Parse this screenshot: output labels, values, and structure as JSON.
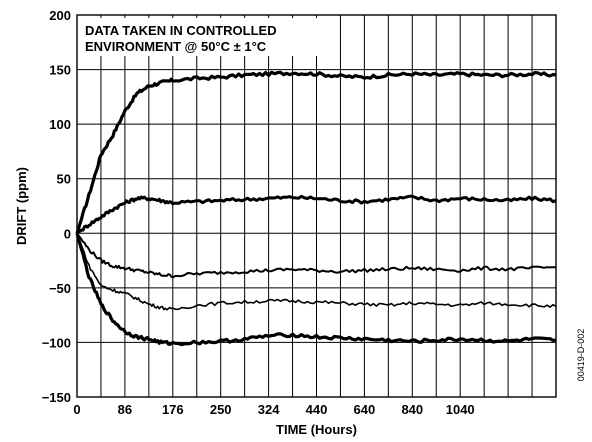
{
  "chart_data": {
    "type": "line",
    "xlabel": "TIME (Hours)",
    "ylabel": "DRIFT (ppm)",
    "annotation": [
      "DATA TAKEN IN CONTROLLED",
      "ENVIRONMENT @ 50°C ± 1°C"
    ],
    "figure_code": "00419-D-002",
    "x_tick_labels": [
      "0",
      "86",
      "176",
      "250",
      "324",
      "440",
      "640",
      "840",
      "1040"
    ],
    "x_tick_labels_note": "tick labels appear every other gridline; 20 equal divisions",
    "x_divisions": 20,
    "xlim": [
      0,
      20
    ],
    "ylim": [
      -150,
      200
    ],
    "y_ticks": [
      -150,
      -100,
      -50,
      0,
      50,
      100,
      150,
      200
    ],
    "grid": true,
    "series": [
      {
        "label_x": [
          0,
          0.5,
          1,
          1.5,
          2,
          2.5,
          3,
          3.5,
          4,
          5,
          6,
          7,
          8,
          9,
          10,
          11,
          12,
          13,
          14,
          15,
          16,
          17,
          18,
          19,
          20
        ],
        "values": [
          0,
          35,
          72,
          90,
          112,
          128,
          135,
          138,
          140,
          142,
          143,
          145,
          146,
          147,
          146,
          144,
          143,
          145,
          146,
          145,
          146,
          145,
          145,
          146,
          145
        ],
        "stroke": 3.2
      },
      {
        "label_x": [
          0,
          0.5,
          1,
          1.5,
          2,
          2.5,
          3,
          3.5,
          4,
          5,
          6,
          7,
          8,
          9,
          10,
          11,
          12,
          13,
          14,
          15,
          16,
          17,
          18,
          19,
          20
        ],
        "values": [
          0,
          8,
          15,
          22,
          28,
          32,
          32,
          30,
          28,
          29,
          30,
          31,
          32,
          33,
          32,
          30,
          29,
          31,
          33,
          30,
          32,
          31,
          30,
          32,
          30
        ],
        "stroke": 3.0
      },
      {
        "label_x": [
          0,
          0.5,
          1,
          1.5,
          2,
          2.5,
          3,
          3.5,
          4,
          5,
          6,
          7,
          8,
          9,
          10,
          11,
          12,
          13,
          14,
          15,
          16,
          17,
          18,
          19,
          20
        ],
        "values": [
          0,
          -15,
          -25,
          -30,
          -32,
          -34,
          -36,
          -38,
          -39,
          -37,
          -36,
          -35,
          -34,
          -33,
          -34,
          -35,
          -34,
          -33,
          -32,
          -33,
          -34,
          -32,
          -33,
          -32,
          -31
        ],
        "stroke": 2.0
      },
      {
        "label_x": [
          0,
          0.5,
          1,
          1.5,
          2,
          2.5,
          3,
          3.5,
          4,
          5,
          6,
          7,
          8,
          9,
          10,
          11,
          12,
          13,
          14,
          15,
          16,
          17,
          18,
          19,
          20
        ],
        "values": [
          0,
          -30,
          -48,
          -52,
          -55,
          -60,
          -65,
          -68,
          -70,
          -66,
          -64,
          -63,
          -62,
          -62,
          -63,
          -64,
          -65,
          -66,
          -64,
          -65,
          -66,
          -64,
          -65,
          -66,
          -67
        ],
        "stroke": 1.6
      },
      {
        "label_x": [
          0,
          0.5,
          1,
          1.5,
          2,
          2.5,
          3,
          3.5,
          4,
          5,
          6,
          7,
          8,
          9,
          10,
          11,
          12,
          13,
          14,
          15,
          16,
          17,
          18,
          19,
          20
        ],
        "values": [
          0,
          -40,
          -65,
          -80,
          -90,
          -95,
          -97,
          -100,
          -101,
          -100,
          -99,
          -97,
          -94,
          -93,
          -95,
          -96,
          -97,
          -98,
          -99,
          -98,
          -97,
          -98,
          -99,
          -97,
          -98
        ],
        "stroke": 3.2
      }
    ]
  }
}
